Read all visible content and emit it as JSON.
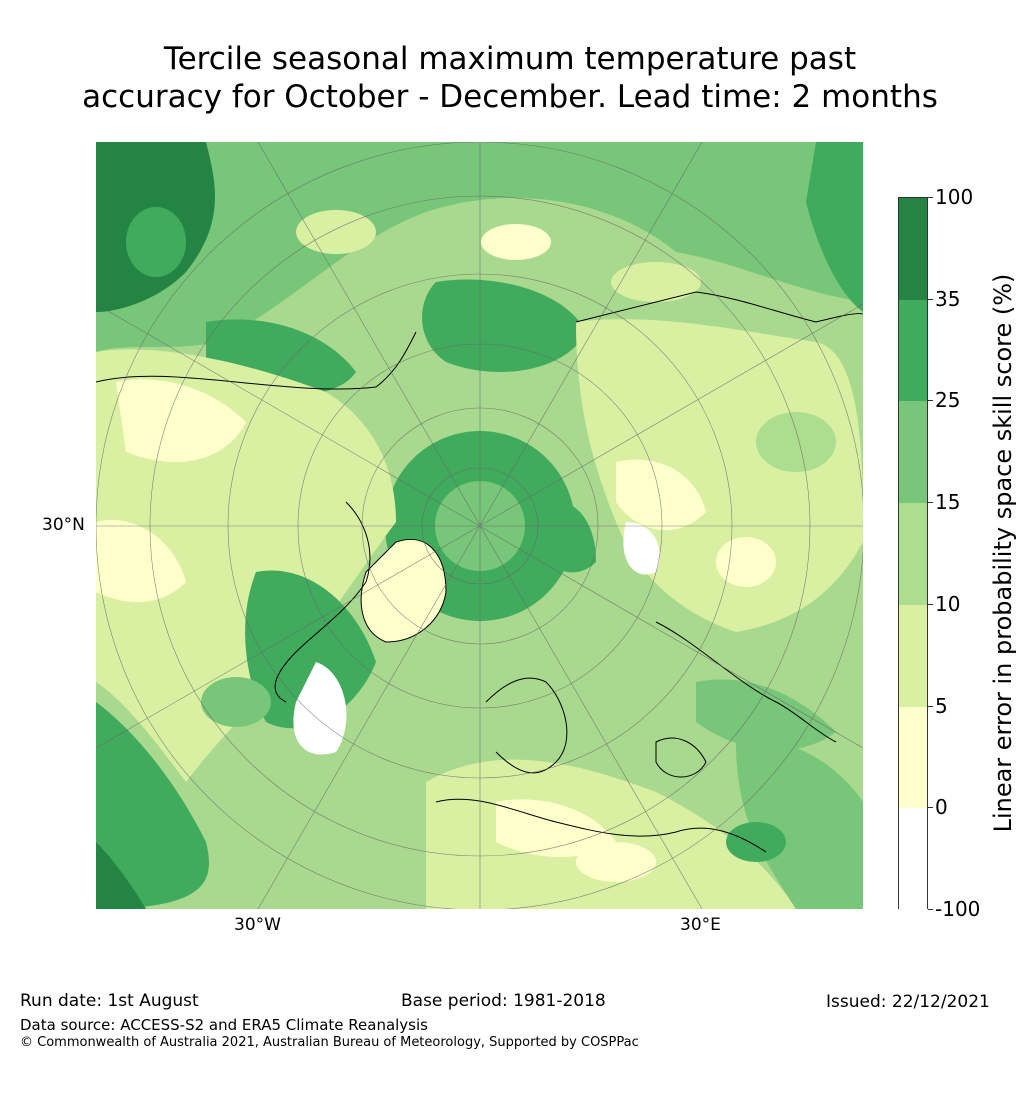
{
  "title": {
    "line1": "Tercile seasonal maximum temperature past",
    "line2": "accuracy for October - December. Lead time: 2 months"
  },
  "map": {
    "projection": "north-polar-stereographic",
    "graticule_labels": {
      "lat_30n": "30°N",
      "lon_30w": "30°W",
      "lon_30e": "30°E"
    }
  },
  "colorbar": {
    "label": "Linear error in probability space skill score (%)",
    "bounds": [
      "-100",
      "0",
      "5",
      "10",
      "15",
      "25",
      "35",
      "100"
    ],
    "colors": [
      "#ffffff",
      "#ffffcc",
      "#d9f0a3",
      "#addd8e",
      "#78c679",
      "#41ab5d",
      "#238443"
    ]
  },
  "footer": {
    "run_date": "Run date: 1st August",
    "base_period": "Base period: 1981-2018",
    "issued": "Issued: 22/12/2021",
    "data_source": "Data source: ACCESS-S2 and ERA5 Climate Reanalysis",
    "copyright": "© Commonwealth of Australia 2021, Australian Bureau of Meteorology, Supported by COSPPac"
  }
}
